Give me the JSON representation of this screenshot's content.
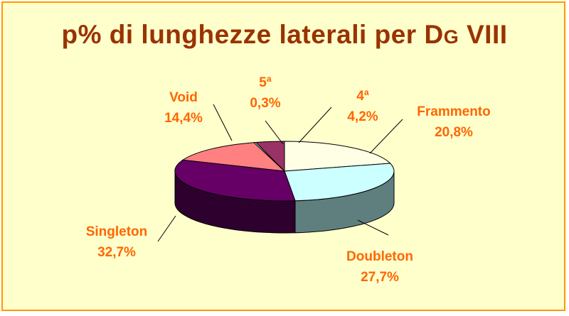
{
  "chart_data": {
    "type": "pie",
    "title": "p% di lunghezze laterali per D",
    "title_sub": "G",
    "title_suffix": " VIII",
    "slices": [
      {
        "label": "Frammento",
        "value_text": "20,8%",
        "value": 20.8,
        "top": "#ffffe6",
        "side": "#b3b3a0"
      },
      {
        "label": "Doubleton",
        "value_text": "27,7%",
        "value": 27.7,
        "top": "#ccffff",
        "side": "#5f7f7f"
      },
      {
        "label": "Singleton",
        "value_text": "32,7%",
        "value": 32.7,
        "top": "#660066",
        "side": "#2e002e"
      },
      {
        "label": "Void",
        "value_text": "14,4%",
        "value": 14.4,
        "top": "#ff8080",
        "side": "#a04848"
      },
      {
        "label": "5ª",
        "value_text": "0,3%",
        "value": 0.3,
        "top": "#ccffff",
        "side": "#5f7f7f"
      },
      {
        "label": "4ª",
        "value_text": "4,2%",
        "value": 4.2,
        "top": "#993366",
        "side": "#4d1a33"
      }
    ]
  }
}
